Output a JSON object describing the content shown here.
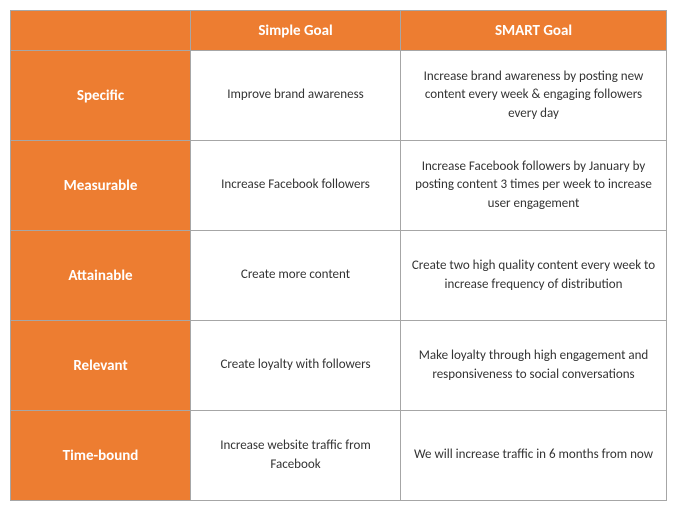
{
  "table": {
    "type": "table",
    "header_bg": "#ed7d31",
    "header_color": "#ffffff",
    "border_color": "#a6a6a6",
    "cell_color": "#333333",
    "columns": [
      "",
      "Simple Goal",
      "SMART Goal"
    ],
    "rows": [
      {
        "label": "Specific",
        "simple": "Improve brand awareness",
        "smart": "Increase brand awareness by posting new content every week & engaging followers every day"
      },
      {
        "label": "Measurable",
        "simple": "Increase Facebook followers",
        "smart": "Increase Facebook followers by January by posting content 3 times per week to increase user engagement"
      },
      {
        "label": "Attainable",
        "simple": "Create more content",
        "smart": "Create two high quality content every week to increase frequency of distribution"
      },
      {
        "label": "Relevant",
        "simple": "Create loyalty with followers",
        "smart": "Make loyalty through high engagement and responsiveness to social conversations"
      },
      {
        "label": "Time-bound",
        "simple": "Increase website traffic from Facebook",
        "smart": "We will increase traffic in 6 months from now"
      }
    ]
  }
}
